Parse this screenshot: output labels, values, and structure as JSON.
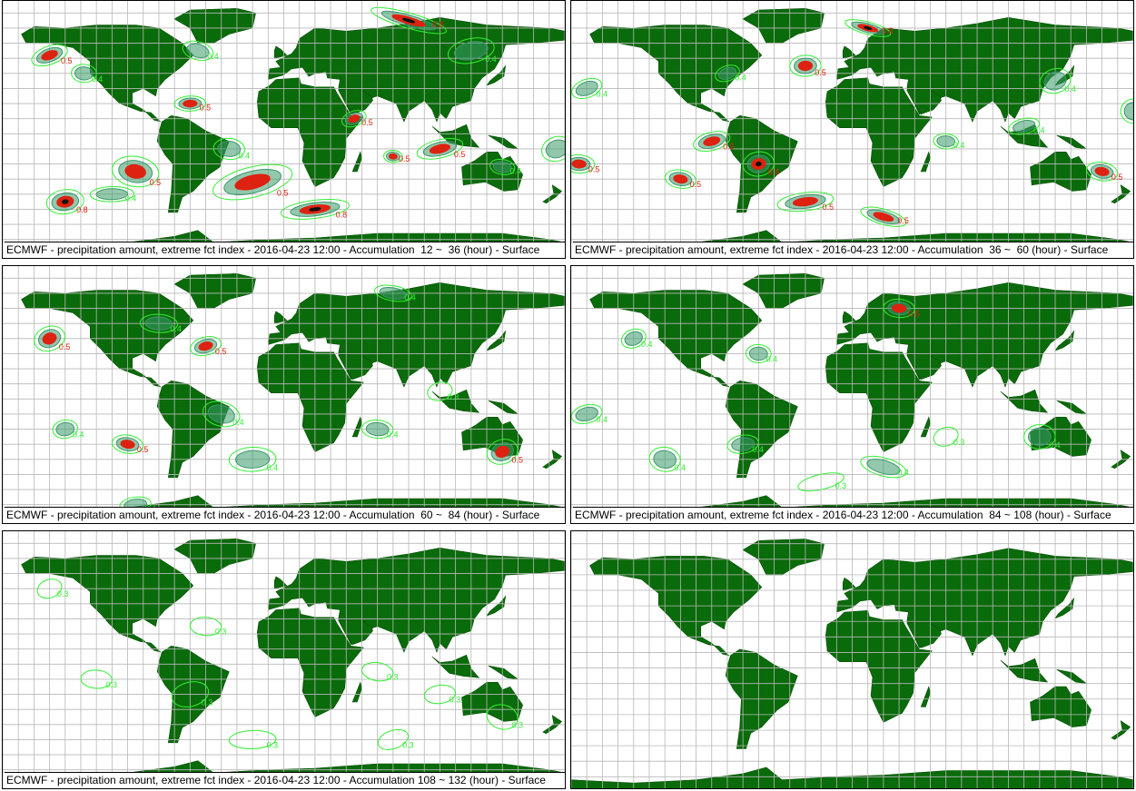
{
  "colors": {
    "land": "#0a6b0a",
    "ocean": "#ffffff",
    "grid": "#b8b8b8",
    "contour_low": "#33ee33",
    "contour_mid": "#3a9a6a",
    "contour_high": "#dd2211",
    "contour_max": "#111111",
    "caption_text": "#000000"
  },
  "contour_labels": [
    "0.3",
    "0.4",
    "0.5",
    "0.8"
  ],
  "panels": [
    {
      "caption": "ECMWF - precipitation amount, extreme fct index - 2016-04-23 12:00 - Accumulation  12 ~  36 (hour) - Surface",
      "activity": 3
    },
    {
      "caption": "ECMWF - precipitation amount, extreme fct index - 2016-04-23 12:00 - Accumulation  36 ~  60 (hour) - Surface",
      "activity": 3
    },
    {
      "caption": "ECMWF - precipitation amount, extreme fct index - 2016-04-23 12:00 - Accumulation  60 ~  84 (hour) - Surface",
      "activity": 2
    },
    {
      "caption": "ECMWF - precipitation amount, extreme fct index - 2016-04-23 12:00 - Accumulation  84 ~ 108 (hour) - Surface",
      "activity": 2
    },
    {
      "caption": "ECMWF - precipitation amount, extreme fct index - 2016-04-23 12:00 - Accumulation 108 ~ 132 (hour) - Surface",
      "activity": 1
    },
    {
      "caption": "",
      "activity": 0
    }
  ]
}
